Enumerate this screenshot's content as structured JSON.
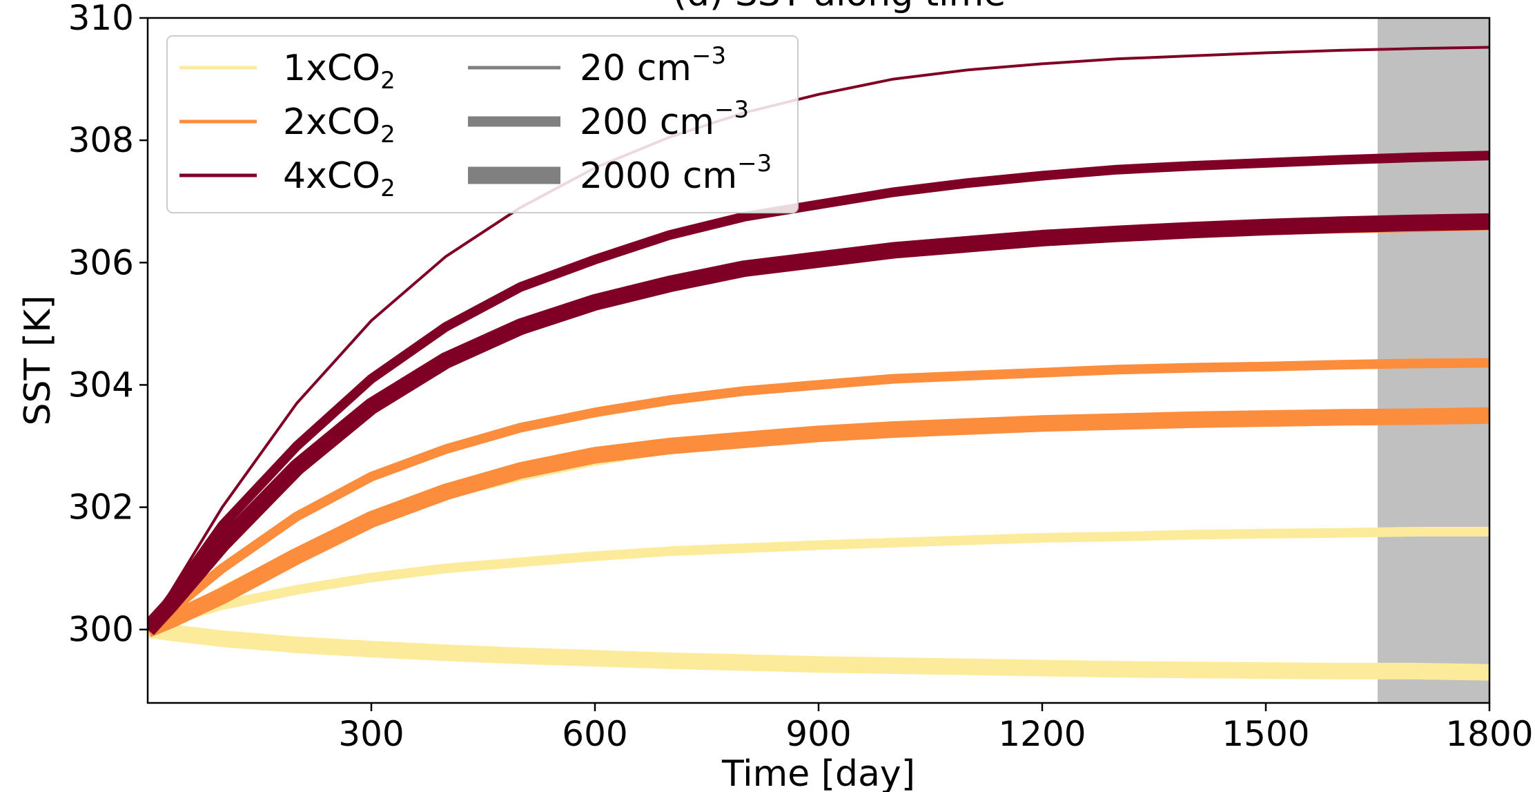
{
  "chart_data": {
    "type": "line",
    "title": "(d) SST along time",
    "xlabel": "Time [day]",
    "ylabel": "SST [K]",
    "xlim": [
      0,
      1800
    ],
    "ylim": [
      298.8,
      310
    ],
    "xticks": [
      300,
      600,
      900,
      1200,
      1500,
      1800
    ],
    "xtick_labels": [
      "300",
      "600",
      "900",
      "1200",
      "1500",
      "1800"
    ],
    "yticks": [
      300,
      302,
      304,
      306,
      308,
      310
    ],
    "ytick_labels": [
      "300",
      "302",
      "304",
      "306",
      "308",
      "310"
    ],
    "shaded_span": {
      "x": [
        1650,
        1800
      ],
      "color": "#c0c0c0"
    },
    "grid": false,
    "legend": {
      "placement": "top-left",
      "co2": [
        {
          "label_base": "1xCO",
          "label_sub": "2",
          "color": "#fdeb9c"
        },
        {
          "label_base": "2xCO",
          "label_sub": "2",
          "color": "#fc8d3d"
        },
        {
          "label_base": "4xCO",
          "label_sub": "2",
          "color": "#7f0024"
        }
      ],
      "ccn": [
        {
          "label": "20 cm",
          "sup": "−3",
          "width_key": "20"
        },
        {
          "label": "200 cm",
          "sup": "−3",
          "width_key": "200"
        },
        {
          "label": "2000 cm",
          "sup": "−3",
          "width_key": "2000"
        }
      ]
    },
    "series": [
      {
        "name": "1xCO2, 20 cm−3",
        "co2": "1x",
        "ccn": "20",
        "color": "#fdeb9c",
        "x": [
          0,
          30,
          100,
          200,
          300,
          400,
          500,
          600,
          700,
          800,
          900,
          1000,
          1100,
          1200,
          1300,
          1400,
          1500,
          1600,
          1700,
          1800
        ],
        "y": [
          300,
          300.2,
          300.7,
          301.3,
          301.8,
          302.15,
          302.45,
          302.7,
          302.9,
          303.05,
          303.15,
          303.25,
          303.3,
          303.35,
          303.4,
          303.42,
          303.44,
          303.45,
          303.45,
          303.45
        ]
      },
      {
        "name": "1xCO2, 200 cm−3",
        "co2": "1x",
        "ccn": "200",
        "color": "#fdeb9c",
        "x": [
          0,
          30,
          100,
          200,
          300,
          400,
          500,
          600,
          700,
          800,
          900,
          1000,
          1100,
          1200,
          1300,
          1400,
          1500,
          1600,
          1700,
          1800
        ],
        "y": [
          300,
          300.15,
          300.4,
          300.65,
          300.85,
          301.0,
          301.1,
          301.2,
          301.28,
          301.33,
          301.38,
          301.42,
          301.46,
          301.5,
          301.52,
          301.55,
          301.57,
          301.58,
          301.6,
          301.6
        ]
      },
      {
        "name": "1xCO2, 2000 cm−3",
        "co2": "1x",
        "ccn": "2000",
        "color": "#fdeb9c",
        "x": [
          0,
          30,
          100,
          200,
          300,
          400,
          500,
          600,
          700,
          800,
          900,
          1000,
          1100,
          1200,
          1300,
          1400,
          1500,
          1600,
          1700,
          1800
        ],
        "y": [
          300,
          299.95,
          299.85,
          299.75,
          299.68,
          299.62,
          299.57,
          299.53,
          299.49,
          299.46,
          299.43,
          299.41,
          299.39,
          299.37,
          299.35,
          299.34,
          299.33,
          299.32,
          299.32,
          299.3
        ]
      },
      {
        "name": "2xCO2, 20 cm−3",
        "co2": "2x",
        "ccn": "20",
        "color": "#fc8d3d",
        "x": [
          0,
          30,
          100,
          200,
          300,
          400,
          500,
          600,
          700,
          800,
          900,
          1000,
          1100,
          1200,
          1300,
          1400,
          1500,
          1600,
          1700,
          1800
        ],
        "y": [
          300,
          300.4,
          301.4,
          302.7,
          303.65,
          304.35,
          304.85,
          305.25,
          305.55,
          305.8,
          305.95,
          306.1,
          306.2,
          306.3,
          306.38,
          306.43,
          306.47,
          306.5,
          306.52,
          306.55
        ]
      },
      {
        "name": "2xCO2, 200 cm−3",
        "co2": "2x",
        "ccn": "200",
        "color": "#fc8d3d",
        "x": [
          0,
          30,
          100,
          200,
          300,
          400,
          500,
          600,
          700,
          800,
          900,
          1000,
          1100,
          1200,
          1300,
          1400,
          1500,
          1600,
          1700,
          1800
        ],
        "y": [
          300,
          300.3,
          301.0,
          301.85,
          302.5,
          302.95,
          303.3,
          303.55,
          303.75,
          303.9,
          304.0,
          304.1,
          304.15,
          304.2,
          304.25,
          304.28,
          304.3,
          304.33,
          304.35,
          304.36
        ]
      },
      {
        "name": "2xCO2, 2000 cm−3",
        "co2": "2x",
        "ccn": "2000",
        "color": "#fc8d3d",
        "x": [
          0,
          30,
          100,
          200,
          300,
          400,
          500,
          600,
          700,
          800,
          900,
          1000,
          1100,
          1200,
          1300,
          1400,
          1500,
          1600,
          1700,
          1800
        ],
        "y": [
          300,
          300.15,
          300.55,
          301.2,
          301.8,
          302.25,
          302.6,
          302.85,
          303.0,
          303.1,
          303.2,
          303.27,
          303.32,
          303.37,
          303.4,
          303.43,
          303.45,
          303.47,
          303.48,
          303.5
        ]
      },
      {
        "name": "4xCO2, 20 cm−3",
        "co2": "4x",
        "ccn": "20",
        "color": "#7f0024",
        "x": [
          0,
          30,
          100,
          200,
          300,
          400,
          500,
          600,
          700,
          800,
          900,
          1000,
          1100,
          1200,
          1300,
          1400,
          1500,
          1600,
          1700,
          1800
        ],
        "y": [
          300,
          300.6,
          302.0,
          303.7,
          305.05,
          306.1,
          306.9,
          307.55,
          308.05,
          308.45,
          308.75,
          309.0,
          309.15,
          309.25,
          309.33,
          309.38,
          309.43,
          309.47,
          309.5,
          309.52
        ]
      },
      {
        "name": "4xCO2, 200 cm−3",
        "co2": "4x",
        "ccn": "200",
        "color": "#7f0024",
        "x": [
          0,
          30,
          100,
          200,
          300,
          400,
          500,
          600,
          700,
          800,
          900,
          1000,
          1100,
          1200,
          1300,
          1400,
          1500,
          1600,
          1700,
          1800
        ],
        "y": [
          300,
          300.5,
          301.7,
          303.0,
          304.1,
          304.95,
          305.6,
          306.05,
          306.45,
          306.75,
          306.95,
          307.15,
          307.3,
          307.42,
          307.52,
          307.58,
          307.63,
          307.68,
          307.72,
          307.75
        ]
      },
      {
        "name": "4xCO2, 2000 cm−3",
        "co2": "4x",
        "ccn": "2000",
        "color": "#7f0024",
        "x": [
          0,
          30,
          100,
          200,
          300,
          400,
          500,
          600,
          700,
          800,
          900,
          1000,
          1100,
          1200,
          1300,
          1400,
          1500,
          1600,
          1700,
          1800
        ],
        "y": [
          300,
          300.4,
          301.4,
          302.65,
          303.65,
          304.4,
          304.95,
          305.35,
          305.65,
          305.9,
          306.05,
          306.2,
          306.3,
          306.4,
          306.47,
          306.53,
          306.58,
          306.62,
          306.65,
          306.67
        ]
      }
    ]
  }
}
